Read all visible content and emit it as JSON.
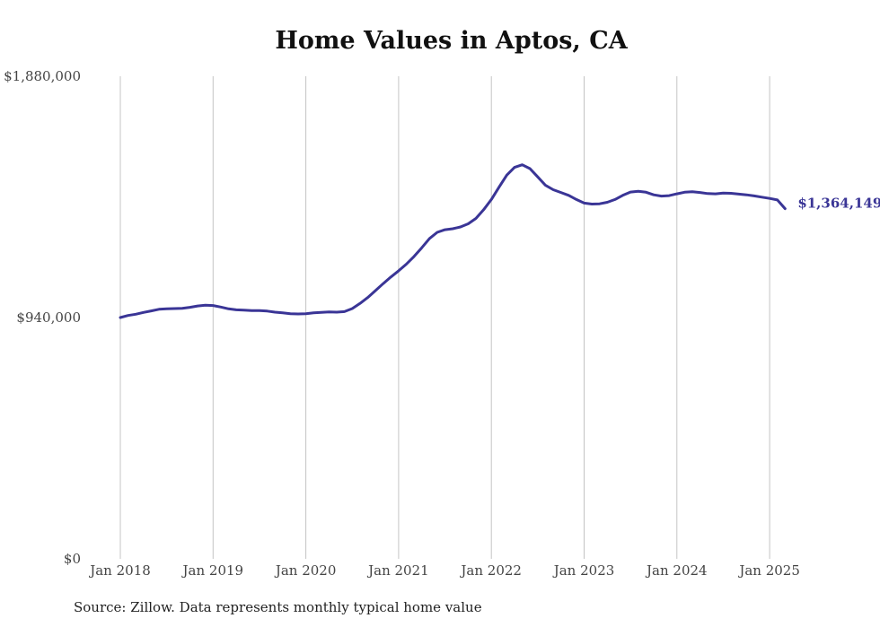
{
  "chart_data": {
    "type": "line",
    "title": "Home Values in Aptos, CA",
    "source": "Source: Zillow. Data represents monthly typical home value",
    "ylim": [
      0,
      1880000
    ],
    "ytick_labels": [
      "$0",
      "$940,000",
      "$1,880,000"
    ],
    "ytick_values": [
      0,
      940000,
      1880000
    ],
    "xlim": [
      "2018-01",
      "2025-03"
    ],
    "xtick_labels": [
      "Jan 2018",
      "Jan 2019",
      "Jan 2020",
      "Jan 2021",
      "Jan 2022",
      "Jan 2023",
      "Jan 2024",
      "Jan 2025"
    ],
    "xtick_dates": [
      "2018-01",
      "2019-01",
      "2020-01",
      "2021-01",
      "2022-01",
      "2023-01",
      "2024-01",
      "2025-01"
    ],
    "grid": "vertical",
    "line_color": "#3a3596",
    "end_label": "$1,364,149",
    "series": [
      {
        "x": [
          "2018-01",
          "2018-02",
          "2018-03",
          "2018-04",
          "2018-05",
          "2018-06",
          "2018-07",
          "2018-08",
          "2018-09",
          "2018-10",
          "2018-11",
          "2018-12",
          "2019-01",
          "2019-02",
          "2019-03",
          "2019-04",
          "2019-05",
          "2019-06",
          "2019-07",
          "2019-08",
          "2019-09",
          "2019-10",
          "2019-11",
          "2019-12",
          "2020-01",
          "2020-02",
          "2020-03",
          "2020-04",
          "2020-05",
          "2020-06",
          "2020-07",
          "2020-08",
          "2020-09",
          "2020-10",
          "2020-11",
          "2020-12",
          "2021-01",
          "2021-02",
          "2021-03",
          "2021-04",
          "2021-05",
          "2021-06",
          "2021-07",
          "2021-08",
          "2021-09",
          "2021-10",
          "2021-11",
          "2021-12",
          "2022-01",
          "2022-02",
          "2022-03",
          "2022-04",
          "2022-05",
          "2022-06",
          "2022-07",
          "2022-08",
          "2022-09",
          "2022-10",
          "2022-11",
          "2022-12",
          "2023-01",
          "2023-02",
          "2023-03",
          "2023-04",
          "2023-05",
          "2023-06",
          "2023-07",
          "2023-08",
          "2023-09",
          "2023-10",
          "2023-11",
          "2023-12",
          "2024-01",
          "2024-02",
          "2024-03",
          "2024-04",
          "2024-05",
          "2024-06",
          "2024-07",
          "2024-08",
          "2024-09",
          "2024-10",
          "2024-11",
          "2024-12",
          "2025-01",
          "2025-02",
          "2025-03"
        ],
        "values": [
          940000,
          948000,
          953000,
          960000,
          966000,
          972000,
          974000,
          975000,
          976000,
          980000,
          985000,
          988000,
          987000,
          981000,
          974000,
          970000,
          969000,
          967000,
          967000,
          965000,
          961000,
          958000,
          955000,
          954000,
          955000,
          958000,
          960000,
          962000,
          961000,
          963000,
          975000,
          995000,
          1018000,
          1045000,
          1072000,
          1098000,
          1122000,
          1148000,
          1178000,
          1212000,
          1248000,
          1272000,
          1282000,
          1286000,
          1293000,
          1305000,
          1326000,
          1360000,
          1400000,
          1448000,
          1495000,
          1525000,
          1535000,
          1520000,
          1488000,
          1455000,
          1438000,
          1427000,
          1416000,
          1400000,
          1386000,
          1382000,
          1383000,
          1389000,
          1400000,
          1416000,
          1429000,
          1432000,
          1428000,
          1418000,
          1413000,
          1415000,
          1422000,
          1428000,
          1430000,
          1427000,
          1423000,
          1422000,
          1425000,
          1424000,
          1421000,
          1418000,
          1414000,
          1409000,
          1404000,
          1398000,
          1364149
        ]
      }
    ]
  }
}
